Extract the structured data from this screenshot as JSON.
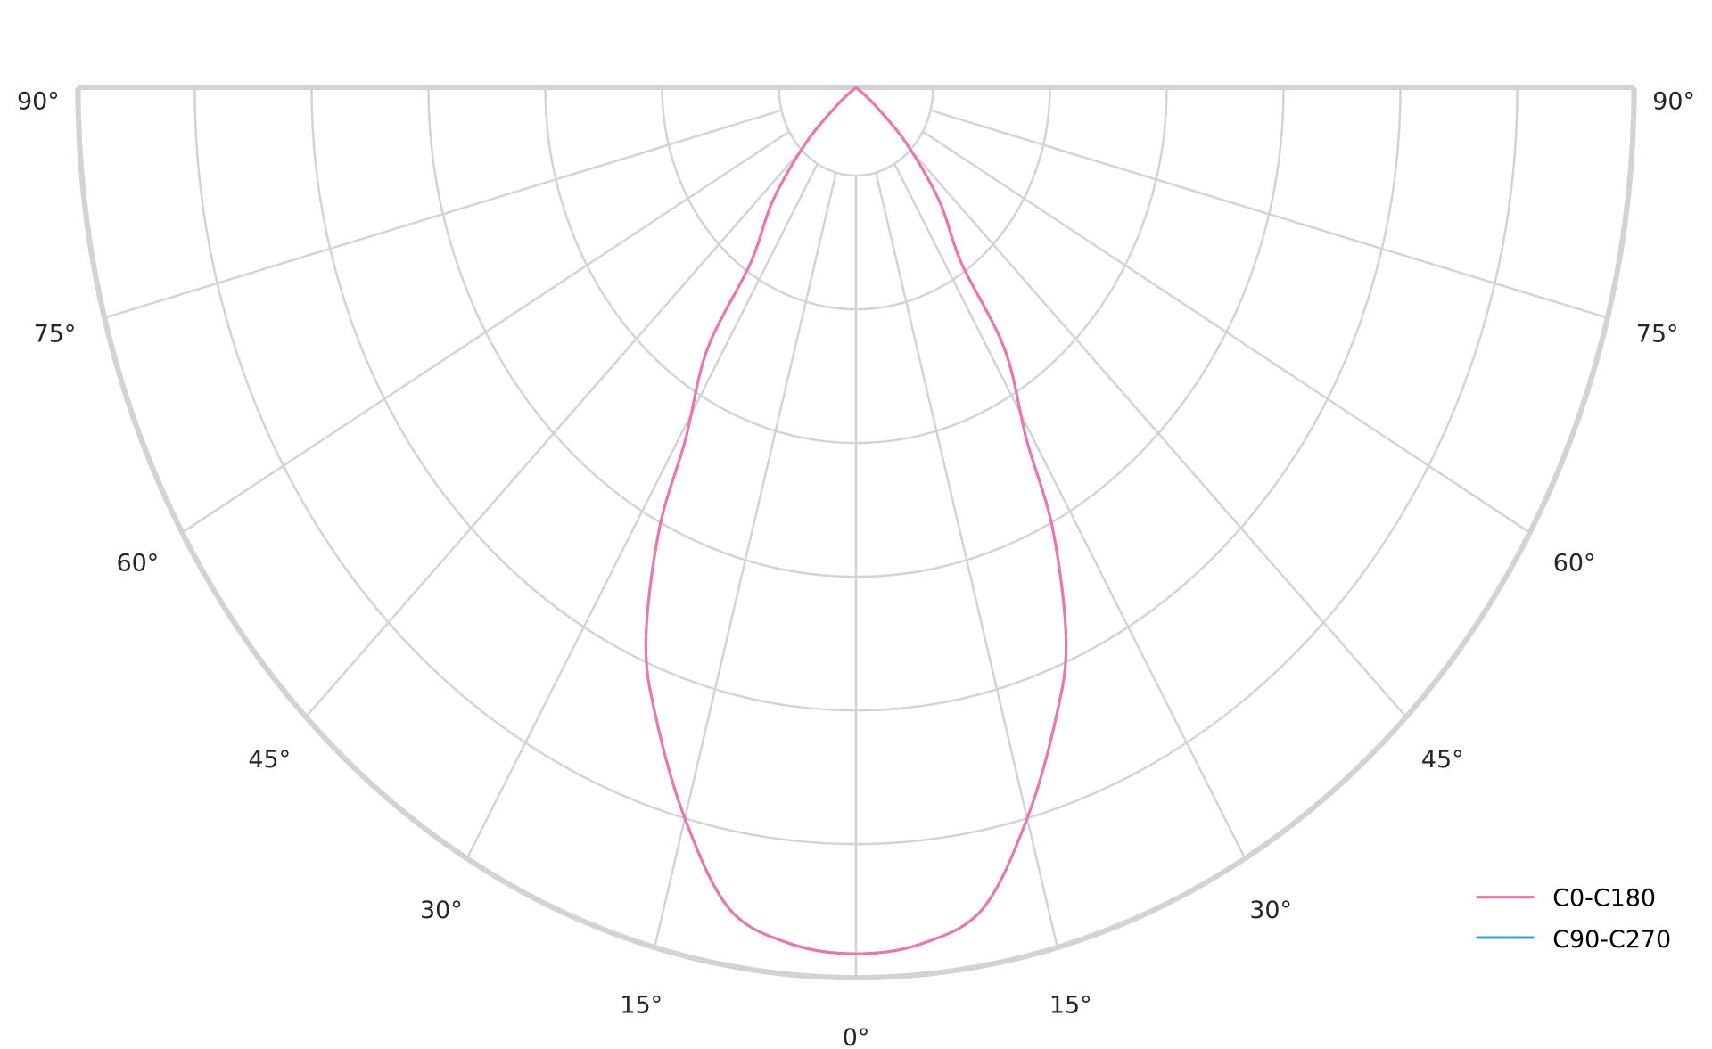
{
  "chart_data": {
    "type": "polar",
    "title": "",
    "angle_unit": "degrees",
    "angle_zero": "bottom",
    "angle_range": [
      -90,
      90
    ],
    "angular_tick_step": 15,
    "angular_tick_labels": [
      "90°",
      "75°",
      "60°",
      "45°",
      "30°",
      "15°",
      "0°",
      "15°",
      "30°",
      "45°",
      "60°",
      "75°",
      "90°"
    ],
    "angular_tick_values": [
      -90,
      -75,
      -60,
      -45,
      -30,
      -15,
      0,
      15,
      30,
      45,
      60,
      75,
      90
    ],
    "radial_range": [
      0,
      6
    ],
    "radial_origin": -0.66,
    "radial_grid_values": [
      0,
      1,
      2,
      3,
      4,
      5,
      6
    ],
    "radial_tick_labels": [],
    "grid": true,
    "grid_color": "#d3d3d3",
    "legend_placement": "bottom-right",
    "symmetric": true,
    "series": [
      {
        "name": "C90-C270",
        "color": "#2ca3e8",
        "angles": [
          0,
          5,
          10,
          15,
          20,
          23.5,
          27,
          29,
          33,
          34.5,
          40,
          46,
          51,
          55
        ],
        "values": [
          5.82,
          5.77,
          5.58,
          5.0,
          4.35,
          3.85,
          3.05,
          2.35,
          1.68,
          0.93,
          0.45,
          -0.07,
          -0.47,
          -0.66
        ]
      },
      {
        "name": "C0-C180",
        "color": "#f075aa",
        "angles": [
          0,
          5,
          10,
          15,
          20,
          23.5,
          27,
          29,
          33,
          34.5,
          40,
          46,
          51,
          55
        ],
        "values": [
          5.82,
          5.77,
          5.58,
          5.0,
          4.35,
          3.85,
          3.05,
          2.35,
          1.68,
          0.93,
          0.45,
          -0.07,
          -0.47,
          -0.66
        ]
      }
    ],
    "legend": [
      "C0-C180",
      "C90-C270"
    ]
  }
}
